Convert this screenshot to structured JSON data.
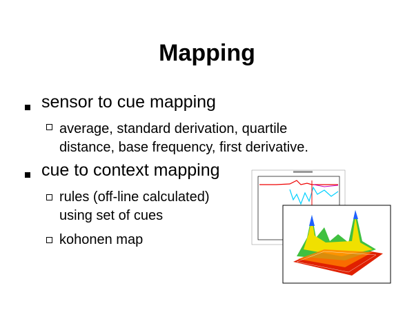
{
  "title": "Mapping",
  "bullets": [
    {
      "text": "sensor to cue mapping",
      "sub": [
        {
          "lines": [
            "average, standard derivation, quartile",
            "distance, base frequency, first derivative."
          ]
        }
      ]
    },
    {
      "text": "cue to context mapping",
      "sub": [
        {
          "lines": [
            "rules (off-line calculated)",
            "using set of cues"
          ]
        },
        {
          "lines": [
            "kohonen map"
          ]
        }
      ]
    }
  ]
}
